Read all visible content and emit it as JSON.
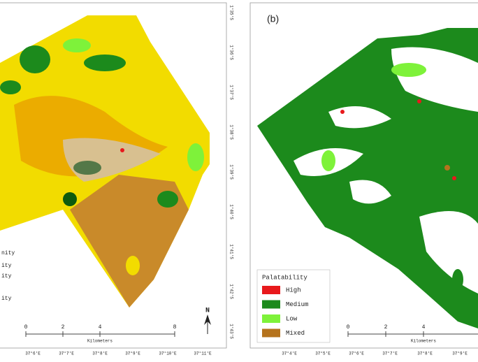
{
  "left_panel": {
    "legend_labels": [
      "nity",
      "ity",
      "ity",
      "ity"
    ],
    "scale_labels": [
      "0",
      "2",
      "4",
      "8"
    ],
    "scale_unit": "Kilometers",
    "north": "N",
    "longitudes": [
      "37°6'E",
      "37°7'E",
      "37°8'E",
      "37°9'E",
      "37°10'E",
      "37°11'E"
    ],
    "latitudes": [
      "1°35'S",
      "1°36'S",
      "1°37'S",
      "1°38'S",
      "1°39'S",
      "1°40'S",
      "1°41'S",
      "1°42'S",
      "1°43'S"
    ]
  },
  "right_panel": {
    "panel_label": "(b)",
    "legend": {
      "title": "Palatability",
      "items": [
        {
          "label": "High",
          "color": "#e8191c"
        },
        {
          "label": "Medium",
          "color": "#1c8a1c"
        },
        {
          "label": "Low",
          "color": "#7ef23a"
        },
        {
          "label": "Mixed",
          "color": "#b5731d"
        }
      ]
    },
    "scale_labels": [
      "0",
      "2",
      "4"
    ],
    "scale_unit": "Kilometers",
    "longitudes": [
      "37°4'E",
      "37°5'E",
      "37°6'E",
      "37°7'E",
      "37°8'E",
      "37°9'E"
    ]
  }
}
